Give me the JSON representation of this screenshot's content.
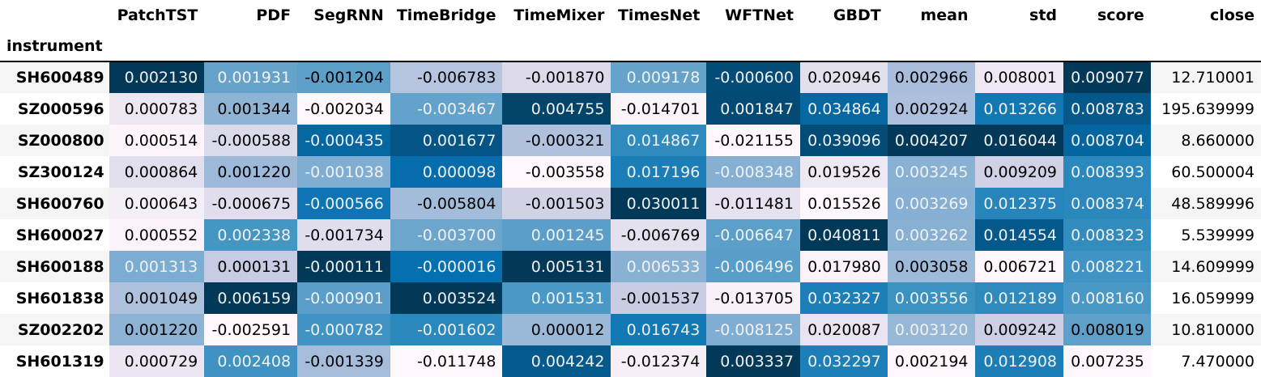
{
  "table": {
    "index_name": "instrument",
    "columns": [
      "PatchTST",
      "PDF",
      "SegRNN",
      "TimeBridge",
      "TimeMixer",
      "TimesNet",
      "WFTNet",
      "GBDT",
      "mean",
      "std",
      "score",
      "close"
    ],
    "rows": [
      {
        "instrument": "SH600489",
        "cells": [
          {
            "text": "0.002130",
            "bg": "#023858",
            "fg": "#f1f1f1"
          },
          {
            "text": "0.001931",
            "bg": "#65a3cb",
            "fg": "#f1f1f1"
          },
          {
            "text": "-0.001204",
            "bg": "#5c9fc9",
            "fg": "#000000"
          },
          {
            "text": "-0.006783",
            "bg": "#b5c4df",
            "fg": "#000000"
          },
          {
            "text": "-0.001870",
            "bg": "#dcdaeb",
            "fg": "#000000"
          },
          {
            "text": "0.009178",
            "bg": "#65a3cb",
            "fg": "#f1f1f1"
          },
          {
            "text": "-0.000600",
            "bg": "#034c78",
            "fg": "#f1f1f1"
          },
          {
            "text": "0.020946",
            "bg": "#e3e0ee",
            "fg": "#000000"
          },
          {
            "text": "0.002966",
            "bg": "#a7bddb",
            "fg": "#000000"
          },
          {
            "text": "0.008001",
            "bg": "#ede8f3",
            "fg": "#000000"
          },
          {
            "text": "0.009077",
            "bg": "#023858",
            "fg": "#f1f1f1"
          }
        ],
        "close": "12.710001"
      },
      {
        "instrument": "SZ000596",
        "cells": [
          {
            "text": "0.000783",
            "bg": "#ede7f2",
            "fg": "#000000"
          },
          {
            "text": "0.001344",
            "bg": "#8eb3d5",
            "fg": "#000000"
          },
          {
            "text": "-0.002034",
            "bg": "#fff7fb",
            "fg": "#000000"
          },
          {
            "text": "-0.003467",
            "bg": "#63a2cb",
            "fg": "#f1f1f1"
          },
          {
            "text": "0.004755",
            "bg": "#03446a",
            "fg": "#f1f1f1"
          },
          {
            "text": "-0.014701",
            "bg": "#fbf4f9",
            "fg": "#000000"
          },
          {
            "text": "0.001847",
            "bg": "#034a74",
            "fg": "#f1f1f1"
          },
          {
            "text": "0.034864",
            "bg": "#0567a2",
            "fg": "#f1f1f1"
          },
          {
            "text": "0.002924",
            "bg": "#acc0dd",
            "fg": "#000000"
          },
          {
            "text": "0.013266",
            "bg": "#1278b4",
            "fg": "#f1f1f1"
          },
          {
            "text": "0.008783",
            "bg": "#04588a",
            "fg": "#f1f1f1"
          }
        ],
        "close": "195.639999"
      },
      {
        "instrument": "SZ000800",
        "cells": [
          {
            "text": "0.000514",
            "bg": "#fdf5fa",
            "fg": "#000000"
          },
          {
            "text": "-0.000588",
            "bg": "#dbdaeb",
            "fg": "#000000"
          },
          {
            "text": "-0.000435",
            "bg": "#0567a1",
            "fg": "#f1f1f1"
          },
          {
            "text": "0.001677",
            "bg": "#045585",
            "fg": "#f1f1f1"
          },
          {
            "text": "-0.000321",
            "bg": "#afc1dd",
            "fg": "#000000"
          },
          {
            "text": "0.014867",
            "bg": "#2f8bbe",
            "fg": "#f1f1f1"
          },
          {
            "text": "-0.021155",
            "bg": "#fff7fb",
            "fg": "#000000"
          },
          {
            "text": "0.039096",
            "bg": "#034c78",
            "fg": "#f1f1f1"
          },
          {
            "text": "0.004207",
            "bg": "#023858",
            "fg": "#f1f1f1"
          },
          {
            "text": "0.016044",
            "bg": "#023858",
            "fg": "#f1f1f1"
          },
          {
            "text": "0.008704",
            "bg": "#05659f",
            "fg": "#f1f1f1"
          }
        ],
        "close": "8.660000"
      },
      {
        "instrument": "SZ300124",
        "cells": [
          {
            "text": "0.000864",
            "bg": "#e1dfed",
            "fg": "#000000"
          },
          {
            "text": "0.001220",
            "bg": "#9cb9d9",
            "fg": "#000000"
          },
          {
            "text": "-0.001038",
            "bg": "#80aed2",
            "fg": "#f1f1f1"
          },
          {
            "text": "0.000098",
            "bg": "#056dab",
            "fg": "#f1f1f1"
          },
          {
            "text": "-0.003558",
            "bg": "#fff7fb",
            "fg": "#000000"
          },
          {
            "text": "0.017196",
            "bg": "#1b7eb7",
            "fg": "#f1f1f1"
          },
          {
            "text": "-0.008348",
            "bg": "#86b0d3",
            "fg": "#f1f1f1"
          },
          {
            "text": "0.019526",
            "bg": "#ede8f3",
            "fg": "#000000"
          },
          {
            "text": "0.003245",
            "bg": "#89b1d4",
            "fg": "#f1f1f1"
          },
          {
            "text": "0.009209",
            "bg": "#d0d1e6",
            "fg": "#000000"
          },
          {
            "text": "0.008393",
            "bg": "#2a88bc",
            "fg": "#f1f1f1"
          }
        ],
        "close": "60.500004"
      },
      {
        "instrument": "SH600760",
        "cells": [
          {
            "text": "0.000643",
            "bg": "#f4eef6",
            "fg": "#000000"
          },
          {
            "text": "-0.000675",
            "bg": "#e0deed",
            "fg": "#000000"
          },
          {
            "text": "-0.000566",
            "bg": "#0d75b3",
            "fg": "#f1f1f1"
          },
          {
            "text": "-0.005804",
            "bg": "#a2bcda",
            "fg": "#000000"
          },
          {
            "text": "-0.001503",
            "bg": "#d2d2e7",
            "fg": "#000000"
          },
          {
            "text": "0.030011",
            "bg": "#023858",
            "fg": "#f1f1f1"
          },
          {
            "text": "-0.011481",
            "bg": "#e5e1ef",
            "fg": "#000000"
          },
          {
            "text": "0.015526",
            "bg": "#fff7fb",
            "fg": "#000000"
          },
          {
            "text": "0.003269",
            "bg": "#86b0d3",
            "fg": "#f1f1f1"
          },
          {
            "text": "0.012375",
            "bg": "#2685bb",
            "fg": "#f1f1f1"
          },
          {
            "text": "0.008374",
            "bg": "#2a88bc",
            "fg": "#f1f1f1"
          }
        ],
        "close": "48.589996"
      },
      {
        "instrument": "SH600027",
        "cells": [
          {
            "text": "0.000552",
            "bg": "#fbf3f9",
            "fg": "#000000"
          },
          {
            "text": "0.002338",
            "bg": "#4496c3",
            "fg": "#f1f1f1"
          },
          {
            "text": "-0.001734",
            "bg": "#e0deed",
            "fg": "#000000"
          },
          {
            "text": "-0.003700",
            "bg": "#6da6cd",
            "fg": "#f1f1f1"
          },
          {
            "text": "0.001245",
            "bg": "#5a9ec9",
            "fg": "#f1f1f1"
          },
          {
            "text": "-0.006769",
            "bg": "#e4e1ef",
            "fg": "#000000"
          },
          {
            "text": "-0.006647",
            "bg": "#5c9fc9",
            "fg": "#f1f1f1"
          },
          {
            "text": "0.040811",
            "bg": "#023858",
            "fg": "#f1f1f1"
          },
          {
            "text": "0.003262",
            "bg": "#87b0d3",
            "fg": "#f1f1f1"
          },
          {
            "text": "0.014554",
            "bg": "#04598c",
            "fg": "#f1f1f1"
          },
          {
            "text": "0.008323",
            "bg": "#338cbe",
            "fg": "#f1f1f1"
          }
        ],
        "close": "5.539999"
      },
      {
        "instrument": "SH600188",
        "cells": [
          {
            "text": "0.001313",
            "bg": "#7bacd1",
            "fg": "#f1f1f1"
          },
          {
            "text": "0.000131",
            "bg": "#c5cce3",
            "fg": "#000000"
          },
          {
            "text": "-0.000111",
            "bg": "#023858",
            "fg": "#f1f1f1"
          },
          {
            "text": "-0.000016",
            "bg": "#0570b0",
            "fg": "#f1f1f1"
          },
          {
            "text": "0.005131",
            "bg": "#023858",
            "fg": "#f1f1f1"
          },
          {
            "text": "0.006533",
            "bg": "#88b1d4",
            "fg": "#f1f1f1"
          },
          {
            "text": "-0.006496",
            "bg": "#589ec8",
            "fg": "#f1f1f1"
          },
          {
            "text": "0.017980",
            "bg": "#f9f2f8",
            "fg": "#000000"
          },
          {
            "text": "0.003058",
            "bg": "#9ebad9",
            "fg": "#000000"
          },
          {
            "text": "0.006721",
            "bg": "#fff7fb",
            "fg": "#000000"
          },
          {
            "text": "0.008221",
            "bg": "#4094c3",
            "fg": "#f1f1f1"
          }
        ],
        "close": "14.609999"
      },
      {
        "instrument": "SH601838",
        "cells": [
          {
            "text": "0.001049",
            "bg": "#adc1dd",
            "fg": "#000000"
          },
          {
            "text": "0.006159",
            "bg": "#023858",
            "fg": "#f1f1f1"
          },
          {
            "text": "-0.000901",
            "bg": "#5a9ec9",
            "fg": "#f1f1f1"
          },
          {
            "text": "0.003524",
            "bg": "#023858",
            "fg": "#f1f1f1"
          },
          {
            "text": "0.001531",
            "bg": "#4a98c5",
            "fg": "#f1f1f1"
          },
          {
            "text": "-0.001537",
            "bg": "#c8cde4",
            "fg": "#000000"
          },
          {
            "text": "-0.013705",
            "bg": "#f8f1f8",
            "fg": "#000000"
          },
          {
            "text": "0.032327",
            "bg": "#1c7fb8",
            "fg": "#f1f1f1"
          },
          {
            "text": "0.003556",
            "bg": "#3b92c1",
            "fg": "#f1f1f1"
          },
          {
            "text": "0.012189",
            "bg": "#2f8bbe",
            "fg": "#f1f1f1"
          },
          {
            "text": "0.008160",
            "bg": "#4a98c5",
            "fg": "#f1f1f1"
          }
        ],
        "close": "16.059999"
      },
      {
        "instrument": "SZ002202",
        "cells": [
          {
            "text": "0.001220",
            "bg": "#8cb3d5",
            "fg": "#000000"
          },
          {
            "text": "-0.002591",
            "bg": "#fff7fb",
            "fg": "#000000"
          },
          {
            "text": "-0.000782",
            "bg": "#4094c3",
            "fg": "#f1f1f1"
          },
          {
            "text": "-0.001602",
            "bg": "#2a88bc",
            "fg": "#f1f1f1"
          },
          {
            "text": "0.000012",
            "bg": "#9ab8d8",
            "fg": "#000000"
          },
          {
            "text": "0.016743",
            "bg": "#1379b5",
            "fg": "#f1f1f1"
          },
          {
            "text": "-0.008125",
            "bg": "#80aed2",
            "fg": "#f1f1f1"
          },
          {
            "text": "0.020087",
            "bg": "#e7e3f0",
            "fg": "#000000"
          },
          {
            "text": "0.003120",
            "bg": "#97b7d7",
            "fg": "#f1f1f1"
          },
          {
            "text": "0.009242",
            "bg": "#cdd0e5",
            "fg": "#000000"
          },
          {
            "text": "0.008019",
            "bg": "#5ea0ca",
            "fg": "#000000"
          }
        ],
        "close": "10.810000"
      },
      {
        "instrument": "SH601319",
        "cells": [
          {
            "text": "0.000729",
            "bg": "#ebe6f2",
            "fg": "#000000"
          },
          {
            "text": "0.002408",
            "bg": "#3f93c2",
            "fg": "#f1f1f1"
          },
          {
            "text": "-0.001339",
            "bg": "#a5bddb",
            "fg": "#000000"
          },
          {
            "text": "-0.011748",
            "bg": "#fff7fb",
            "fg": "#000000"
          },
          {
            "text": "0.004242",
            "bg": "#045a8d",
            "fg": "#f1f1f1"
          },
          {
            "text": "-0.012374",
            "bg": "#f6eff7",
            "fg": "#000000"
          },
          {
            "text": "0.003337",
            "bg": "#023858",
            "fg": "#f1f1f1"
          },
          {
            "text": "0.032297",
            "bg": "#1c7fb8",
            "fg": "#f1f1f1"
          },
          {
            "text": "0.002194",
            "bg": "#fff7fb",
            "fg": "#000000"
          },
          {
            "text": "0.012908",
            "bg": "#1b7eb7",
            "fg": "#f1f1f1"
          },
          {
            "text": "0.007235",
            "bg": "#fff7fb",
            "fg": "#000000"
          }
        ],
        "close": "7.470000"
      }
    ]
  }
}
